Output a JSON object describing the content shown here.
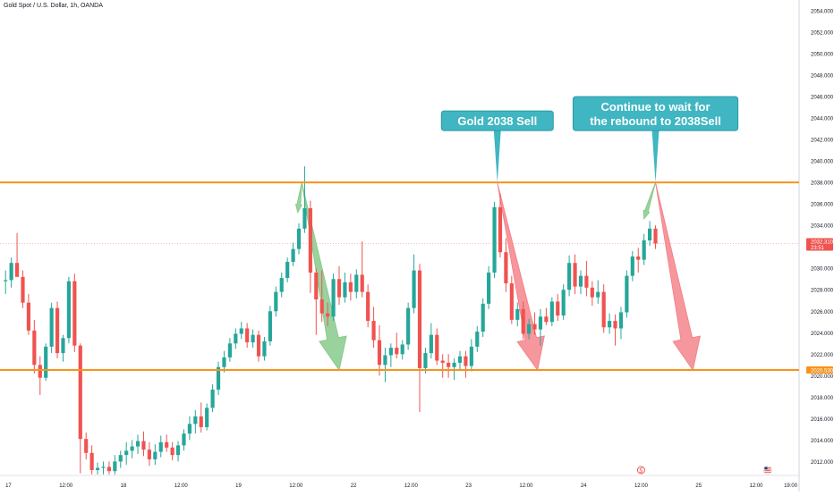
{
  "symbol_title": "Gold Spot / U.S. Dollar, 1h, OANDA",
  "colors": {
    "up": "#26a69a",
    "down": "#ef5350",
    "level_line": "#f7931a",
    "label_bg": "#3fb6c2",
    "arrow_green": "#81c784",
    "arrow_red": "#f47c85",
    "axis_text": "#131722",
    "grid": "#f0f3fa"
  },
  "chart_data": {
    "type": "candlestick",
    "title": "Gold Spot / U.S. Dollar, 1h, OANDA",
    "xlabel": "",
    "ylabel": "",
    "ylim": [
      2010.7,
      2055.0
    ],
    "xlim": [
      0,
      138
    ],
    "grid": false,
    "y_ticks": [
      "2054.000",
      "2052.000",
      "2050.000",
      "2048.000",
      "2046.000",
      "2044.000",
      "2042.000",
      "2040.000",
      "2038.000",
      "2036.000",
      "2034.000",
      "2032.000",
      "2030.000",
      "2028.000",
      "2026.000",
      "2024.000",
      "2022.000",
      "2020.000",
      "2018.000",
      "2016.000",
      "2014.000",
      "2012.000"
    ],
    "x_ticks": [
      {
        "label": "17",
        "x": 1
      },
      {
        "label": "12:00",
        "x": 11
      },
      {
        "label": "18",
        "x": 21
      },
      {
        "label": "12:00",
        "x": 31
      },
      {
        "label": "19",
        "x": 41
      },
      {
        "label": "12:00",
        "x": 51
      },
      {
        "label": "22",
        "x": 61
      },
      {
        "label": "12:00",
        "x": 71
      },
      {
        "label": "23",
        "x": 81
      },
      {
        "label": "12:00",
        "x": 91
      },
      {
        "label": "24",
        "x": 101
      },
      {
        "label": "12:00",
        "x": 111
      },
      {
        "label": "25",
        "x": 121
      },
      {
        "label": "12:00",
        "x": 131
      },
      {
        "label": "19:00",
        "x": 137
      }
    ],
    "price_label": {
      "value": "2032.310",
      "countdown": "23:51",
      "price": 2032.31
    },
    "level_lines": [
      {
        "price": 2038.0
      },
      {
        "price": 2020.53,
        "label": "2020.530"
      }
    ],
    "candles": [
      [
        2028.8,
        2029.8,
        2027.6,
        2028.9
      ],
      [
        2028.9,
        2031.0,
        2028.2,
        2030.5
      ],
      [
        2030.5,
        2033.3,
        2029.5,
        2029.2
      ],
      [
        2029.2,
        2029.8,
        2026.3,
        2026.8
      ],
      [
        2026.8,
        2027.6,
        2023.8,
        2024.2
      ],
      [
        2024.2,
        2025.2,
        2020.2,
        2021.0
      ],
      [
        2021.0,
        2021.8,
        2018.2,
        2019.8
      ],
      [
        2019.8,
        2023.0,
        2019.5,
        2022.7
      ],
      [
        2022.7,
        2026.8,
        2022.1,
        2026.3
      ],
      [
        2026.3,
        2026.9,
        2021.6,
        2022.1
      ],
      [
        2022.1,
        2023.8,
        2021.3,
        2023.5
      ],
      [
        2023.5,
        2029.2,
        2023.0,
        2028.8
      ],
      [
        2028.8,
        2029.5,
        2022.2,
        2022.8
      ],
      [
        2022.8,
        2023.0,
        2010.9,
        2014.1
      ],
      [
        2014.1,
        2014.7,
        2012.2,
        2012.8
      ],
      [
        2012.8,
        2013.5,
        2010.8,
        2011.2
      ],
      [
        2011.2,
        2011.9,
        2010.8,
        2011.4
      ],
      [
        2011.4,
        2012.0,
        2010.8,
        2011.5
      ],
      [
        2011.5,
        2012.0,
        2010.8,
        2011.1
      ],
      [
        2011.1,
        2012.6,
        2010.8,
        2012.0
      ],
      [
        2012.0,
        2013.0,
        2011.4,
        2012.6
      ],
      [
        2012.6,
        2013.8,
        2011.7,
        2013.0
      ],
      [
        2013.0,
        2014.0,
        2012.3,
        2013.4
      ],
      [
        2013.4,
        2014.5,
        2012.7,
        2013.9
      ],
      [
        2013.9,
        2014.8,
        2012.5,
        2013.1
      ],
      [
        2013.1,
        2013.8,
        2011.6,
        2012.2
      ],
      [
        2012.2,
        2013.6,
        2011.7,
        2012.9
      ],
      [
        2012.9,
        2014.4,
        2012.4,
        2013.8
      ],
      [
        2013.8,
        2014.5,
        2012.9,
        2013.3
      ],
      [
        2013.3,
        2013.8,
        2012.1,
        2012.6
      ],
      [
        2012.6,
        2013.9,
        2012.0,
        2013.5
      ],
      [
        2013.5,
        2015.0,
        2013.0,
        2014.6
      ],
      [
        2014.6,
        2016.2,
        2014.0,
        2015.5
      ],
      [
        2015.5,
        2016.8,
        2014.6,
        2016.2
      ],
      [
        2016.2,
        2017.5,
        2014.7,
        2015.2
      ],
      [
        2015.2,
        2017.4,
        2014.9,
        2017.0
      ],
      [
        2017.0,
        2019.2,
        2016.6,
        2018.7
      ],
      [
        2018.7,
        2021.3,
        2018.2,
        2020.8
      ],
      [
        2020.8,
        2022.3,
        2020.3,
        2021.7
      ],
      [
        2021.7,
        2023.5,
        2021.3,
        2023.0
      ],
      [
        2023.0,
        2024.4,
        2022.5,
        2023.9
      ],
      [
        2023.9,
        2025.0,
        2023.4,
        2024.4
      ],
      [
        2024.4,
        2024.9,
        2022.6,
        2023.1
      ],
      [
        2023.1,
        2024.3,
        2022.6,
        2023.8
      ],
      [
        2023.8,
        2024.2,
        2021.3,
        2021.8
      ],
      [
        2021.8,
        2023.6,
        2021.4,
        2023.2
      ],
      [
        2023.2,
        2026.5,
        2022.8,
        2026.0
      ],
      [
        2026.0,
        2028.3,
        2025.5,
        2027.8
      ],
      [
        2027.8,
        2029.6,
        2027.3,
        2029.1
      ],
      [
        2029.1,
        2031.0,
        2028.7,
        2030.6
      ],
      [
        2030.6,
        2032.4,
        2030.2,
        2031.8
      ],
      [
        2031.8,
        2034.2,
        2031.3,
        2033.7
      ],
      [
        2033.7,
        2039.5,
        2033.3,
        2035.6
      ],
      [
        2035.6,
        2036.3,
        2027.7,
        2029.6
      ],
      [
        2029.6,
        2030.0,
        2023.8,
        2027.1
      ],
      [
        2027.1,
        2029.8,
        2025.0,
        2025.8
      ],
      [
        2025.8,
        2026.8,
        2024.6,
        2025.5
      ],
      [
        2025.5,
        2029.5,
        2025.1,
        2029.0
      ],
      [
        2029.0,
        2030.2,
        2026.6,
        2027.3
      ],
      [
        2027.3,
        2029.6,
        2026.8,
        2028.7
      ],
      [
        2028.7,
        2029.5,
        2027.0,
        2027.8
      ],
      [
        2027.8,
        2029.9,
        2027.2,
        2029.4
      ],
      [
        2029.4,
        2032.5,
        2027.3,
        2027.8
      ],
      [
        2027.8,
        2028.5,
        2024.5,
        2025.1
      ],
      [
        2025.1,
        2026.4,
        2022.6,
        2023.3
      ],
      [
        2023.3,
        2024.7,
        2020.0,
        2021.0
      ],
      [
        2021.0,
        2022.6,
        2019.4,
        2021.9
      ],
      [
        2021.9,
        2023.0,
        2020.8,
        2022.6
      ],
      [
        2022.6,
        2024.0,
        2021.6,
        2022.0
      ],
      [
        2022.0,
        2023.3,
        2021.5,
        2022.9
      ],
      [
        2022.9,
        2026.8,
        2022.4,
        2026.3
      ],
      [
        2026.3,
        2031.3,
        2025.8,
        2029.8
      ],
      [
        2029.8,
        2030.4,
        2016.6,
        2020.7
      ],
      [
        2020.7,
        2022.6,
        2020.2,
        2022.1
      ],
      [
        2022.1,
        2024.9,
        2021.6,
        2023.8
      ],
      [
        2023.8,
        2024.4,
        2021.0,
        2021.4
      ],
      [
        2021.4,
        2022.0,
        2019.8,
        2021.2
      ],
      [
        2021.2,
        2022.0,
        2019.8,
        2020.8
      ],
      [
        2020.8,
        2021.6,
        2019.6,
        2021.2
      ],
      [
        2021.2,
        2022.3,
        2020.6,
        2021.8
      ],
      [
        2021.8,
        2022.3,
        2019.8,
        2020.9
      ],
      [
        2020.9,
        2023.4,
        2020.4,
        2022.7
      ],
      [
        2022.7,
        2024.6,
        2022.2,
        2024.1
      ],
      [
        2024.1,
        2027.2,
        2023.6,
        2026.7
      ],
      [
        2026.7,
        2030.2,
        2026.2,
        2029.6
      ],
      [
        2029.6,
        2036.2,
        2029.1,
        2035.7
      ],
      [
        2035.7,
        2037.0,
        2031.0,
        2031.5
      ],
      [
        2031.5,
        2032.8,
        2027.8,
        2028.6
      ],
      [
        2028.6,
        2029.3,
        2024.8,
        2025.2
      ],
      [
        2025.2,
        2026.8,
        2024.6,
        2026.2
      ],
      [
        2026.2,
        2026.9,
        2023.4,
        2023.9
      ],
      [
        2023.9,
        2025.3,
        2023.4,
        2024.8
      ],
      [
        2024.8,
        2025.9,
        2023.8,
        2024.3
      ],
      [
        2024.3,
        2026.2,
        2022.8,
        2025.5
      ],
      [
        2025.5,
        2026.3,
        2024.7,
        2025.0
      ],
      [
        2025.0,
        2027.3,
        2024.6,
        2026.9
      ],
      [
        2026.9,
        2027.6,
        2025.1,
        2025.6
      ],
      [
        2025.6,
        2028.5,
        2025.2,
        2028.0
      ],
      [
        2028.0,
        2031.2,
        2027.4,
        2030.5
      ],
      [
        2030.5,
        2031.3,
        2027.6,
        2028.3
      ],
      [
        2028.3,
        2029.8,
        2027.6,
        2029.3
      ],
      [
        2029.3,
        2030.7,
        2027.4,
        2028.2
      ],
      [
        2028.2,
        2028.8,
        2026.5,
        2027.3
      ],
      [
        2027.3,
        2028.9,
        2026.7,
        2027.8
      ],
      [
        2027.8,
        2028.5,
        2024.0,
        2024.5
      ],
      [
        2024.5,
        2025.8,
        2023.9,
        2025.1
      ],
      [
        2025.1,
        2025.7,
        2022.8,
        2024.4
      ],
      [
        2024.4,
        2026.4,
        2023.4,
        2025.9
      ],
      [
        2025.9,
        2029.8,
        2025.4,
        2029.3
      ],
      [
        2029.3,
        2031.6,
        2028.8,
        2031.1
      ],
      [
        2031.1,
        2031.9,
        2029.6,
        2030.8
      ],
      [
        2030.8,
        2033.2,
        2030.3,
        2032.6
      ],
      [
        2032.6,
        2034.4,
        2032.1,
        2033.7
      ],
      [
        2033.7,
        2034.0,
        2031.8,
        2032.3
      ]
    ],
    "annotations": [
      {
        "text_lines": [
          "Gold 2038  Sell"
        ],
        "price": 2038.0,
        "x": 86.0
      },
      {
        "text_lines": [
          "Continue to wait for",
          "the rebound to 2038Sell"
        ],
        "price": 2038.0,
        "x": 113.5
      }
    ],
    "arrows": [
      {
        "color": "green",
        "from": [
          52.0,
          2038.0
        ],
        "to": [
          58.5,
          2020.5
        ]
      },
      {
        "color": "green",
        "from": [
          52.0,
          2038.0
        ],
        "to": [
          51.3,
          2035.2
        ]
      },
      {
        "color": "red",
        "from": [
          86.0,
          2038.0
        ],
        "to": [
          93.0,
          2020.5
        ]
      },
      {
        "color": "green",
        "from": [
          113.5,
          2038.0
        ],
        "to": [
          111.5,
          2034.6
        ]
      },
      {
        "color": "red",
        "from": [
          113.5,
          2038.0
        ],
        "to": [
          120.0,
          2020.5
        ]
      }
    ],
    "event_icons": [
      {
        "name": "dividend-icon",
        "x": 111
      },
      {
        "name": "us-flag-icon",
        "x": 133
      }
    ]
  }
}
